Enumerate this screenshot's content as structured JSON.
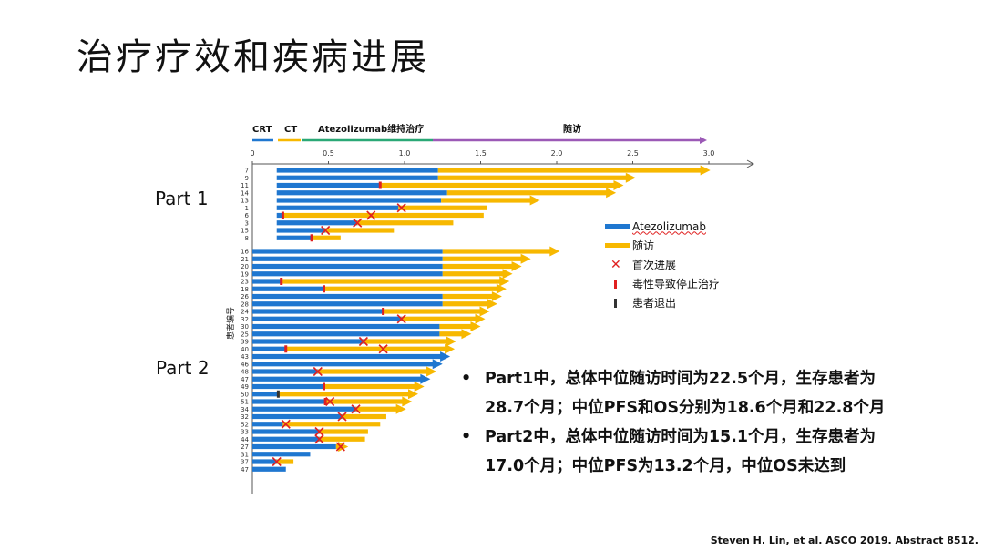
{
  "slide": {
    "title": "治疗疗效和疾病进展",
    "part1_label": "Part 1",
    "part2_label": "Part 2",
    "source": "Steven H. Lin, et al. ASCO 2019. Abstract 8512."
  },
  "legend": {
    "atezolizumab": "Atezolizumab",
    "followup": "随访",
    "first_progression": "首次进展",
    "toxicity_stop": "毒性导致停止治疗",
    "withdrawal": "患者退出"
  },
  "bullets": [
    [
      "Part1中，总体中位随访时间为22.5个月，生存患者为",
      "28.7个月；中位PFS和OS分别为18.6个月和22.8个月"
    ],
    [
      "Part2中，总体中位随访时间为15.1个月，生存患者为",
      "17.0个月；中位PFS为13.2个月，中位OS未达到"
    ]
  ],
  "colors": {
    "atezolizumab": "#1f77d0",
    "followup": "#f7b800",
    "progression": "#e02020",
    "toxicity": "#e02020",
    "withdrawal": "#333333",
    "crt": "#1f77d0",
    "ct": "#f7b800",
    "maintenance": "#2aa876",
    "followup_phase": "#9b59b6"
  },
  "chart_data": {
    "type": "bar",
    "orientation": "horizontal swimmer",
    "phases": [
      "CRT",
      "CT",
      "Atezolizumab维持治疗",
      "随访"
    ],
    "x_ticks": [
      "0",
      "0.5",
      "1.0",
      "1.5",
      "2.0",
      "2.5",
      "3.0"
    ],
    "xlim": [
      0,
      3.2
    ],
    "ylabel": "患者编号",
    "groups": [
      {
        "name": "Part 1",
        "patients": [
          {
            "id": "7",
            "start": 0.16,
            "atezo_end": 1.22,
            "end": 2.95,
            "arrow": true
          },
          {
            "id": "9",
            "start": 0.16,
            "atezo_end": 1.22,
            "end": 2.46,
            "arrow": true
          },
          {
            "id": "11",
            "start": 0.16,
            "atezo_end": 0.84,
            "end": 2.38,
            "arrow": true,
            "toxicity": 0.84
          },
          {
            "id": "14",
            "start": 0.16,
            "atezo_end": 1.28,
            "end": 2.33,
            "arrow": true
          },
          {
            "id": "13",
            "start": 0.16,
            "atezo_end": 1.24,
            "end": 1.83,
            "arrow": true
          },
          {
            "id": "1",
            "start": 0.16,
            "atezo_end": 0.96,
            "end": 1.54,
            "progression": 0.98
          },
          {
            "id": "6",
            "start": 0.16,
            "atezo_end": 0.2,
            "end": 1.52,
            "toxicity": 0.2,
            "progression": 0.78
          },
          {
            "id": "3",
            "start": 0.16,
            "atezo_end": 0.69,
            "end": 1.32,
            "progression": 0.69
          },
          {
            "id": "15",
            "start": 0.16,
            "atezo_end": 0.48,
            "end": 0.93,
            "progression": 0.48
          },
          {
            "id": "8",
            "start": 0.16,
            "atezo_end": 0.39,
            "end": 0.58,
            "toxicity": 0.39
          }
        ]
      },
      {
        "name": "Part 2",
        "patients": [
          {
            "id": "16",
            "start": 0,
            "atezo_end": 1.25,
            "end": 1.96,
            "arrow": true
          },
          {
            "id": "21",
            "start": 0,
            "atezo_end": 1.25,
            "end": 1.77,
            "arrow": true
          },
          {
            "id": "20",
            "start": 0,
            "atezo_end": 1.25,
            "end": 1.71,
            "arrow": true
          },
          {
            "id": "19",
            "start": 0,
            "atezo_end": 1.25,
            "end": 1.65,
            "arrow": true
          },
          {
            "id": "23",
            "start": 0,
            "atezo_end": 0.19,
            "end": 1.63,
            "arrow": true,
            "toxicity": 0.19
          },
          {
            "id": "18",
            "start": 0,
            "atezo_end": 0.47,
            "end": 1.61,
            "arrow": true,
            "toxicity": 0.47
          },
          {
            "id": "26",
            "start": 0,
            "atezo_end": 1.25,
            "end": 1.58,
            "arrow": true
          },
          {
            "id": "28",
            "start": 0,
            "atezo_end": 1.25,
            "end": 1.55,
            "arrow": true
          },
          {
            "id": "24",
            "start": 0,
            "atezo_end": 0.86,
            "end": 1.5,
            "arrow": true,
            "toxicity": 0.86
          },
          {
            "id": "32",
            "start": 0,
            "atezo_end": 0.98,
            "end": 1.47,
            "arrow": true,
            "progression": 0.98
          },
          {
            "id": "30",
            "start": 0,
            "atezo_end": 1.23,
            "end": 1.44,
            "arrow": true
          },
          {
            "id": "25",
            "start": 0,
            "atezo_end": 1.23,
            "end": 1.38,
            "arrow": true
          },
          {
            "id": "39",
            "start": 0,
            "atezo_end": 0.73,
            "end": 1.28,
            "arrow": true,
            "progression": 0.73
          },
          {
            "id": "40",
            "start": 0,
            "atezo_end": 0.22,
            "end": 1.27,
            "arrow": true,
            "toxicity": 0.22,
            "progression": 0.86
          },
          {
            "id": "43",
            "start": 0,
            "atezo_end": 1.24,
            "end": 1.24,
            "arrow": true
          },
          {
            "id": "46",
            "start": 0,
            "atezo_end": 1.19,
            "end": 1.19,
            "arrow": true
          },
          {
            "id": "48",
            "start": 0,
            "atezo_end": 0.43,
            "end": 1.15,
            "arrow": true,
            "progression": 0.43
          },
          {
            "id": "47",
            "start": 0,
            "atezo_end": 1.11,
            "end": 1.11,
            "arrow": true
          },
          {
            "id": "49",
            "start": 0,
            "atezo_end": 0.47,
            "end": 1.07,
            "arrow": true,
            "toxicity": 0.47
          },
          {
            "id": "50",
            "start": 0,
            "atezo_end": 0.17,
            "end": 1.03,
            "arrow": true,
            "withdrawal": 0.17
          },
          {
            "id": "51",
            "start": 0,
            "atezo_end": 0.48,
            "end": 0.99,
            "arrow": true,
            "toxicity": 0.48,
            "progression": 0.51
          },
          {
            "id": "34",
            "start": 0,
            "atezo_end": 0.68,
            "end": 0.95,
            "arrow": true,
            "progression": 0.68
          },
          {
            "id": "32",
            "start": 0,
            "atezo_end": 0.59,
            "end": 0.88,
            "progression": 0.59
          },
          {
            "id": "52",
            "start": 0,
            "atezo_end": 0.2,
            "end": 0.84,
            "progression": 0.22
          },
          {
            "id": "33",
            "start": 0,
            "atezo_end": 0.44,
            "end": 0.76,
            "progression": 0.44
          },
          {
            "id": "44",
            "start": 0,
            "atezo_end": 0.44,
            "end": 0.74,
            "progression": 0.44
          },
          {
            "id": "27",
            "start": 0,
            "atezo_end": 0.55,
            "end": 0.57,
            "arrow": true,
            "progression": 0.58
          },
          {
            "id": "31",
            "start": 0,
            "atezo_end": 0.38,
            "end": 0.38
          },
          {
            "id": "37",
            "start": 0,
            "atezo_end": 0.16,
            "end": 0.27,
            "progression": 0.16
          },
          {
            "id": "47",
            "start": 0,
            "atezo_end": 0.22,
            "end": 0.22
          }
        ]
      }
    ]
  }
}
